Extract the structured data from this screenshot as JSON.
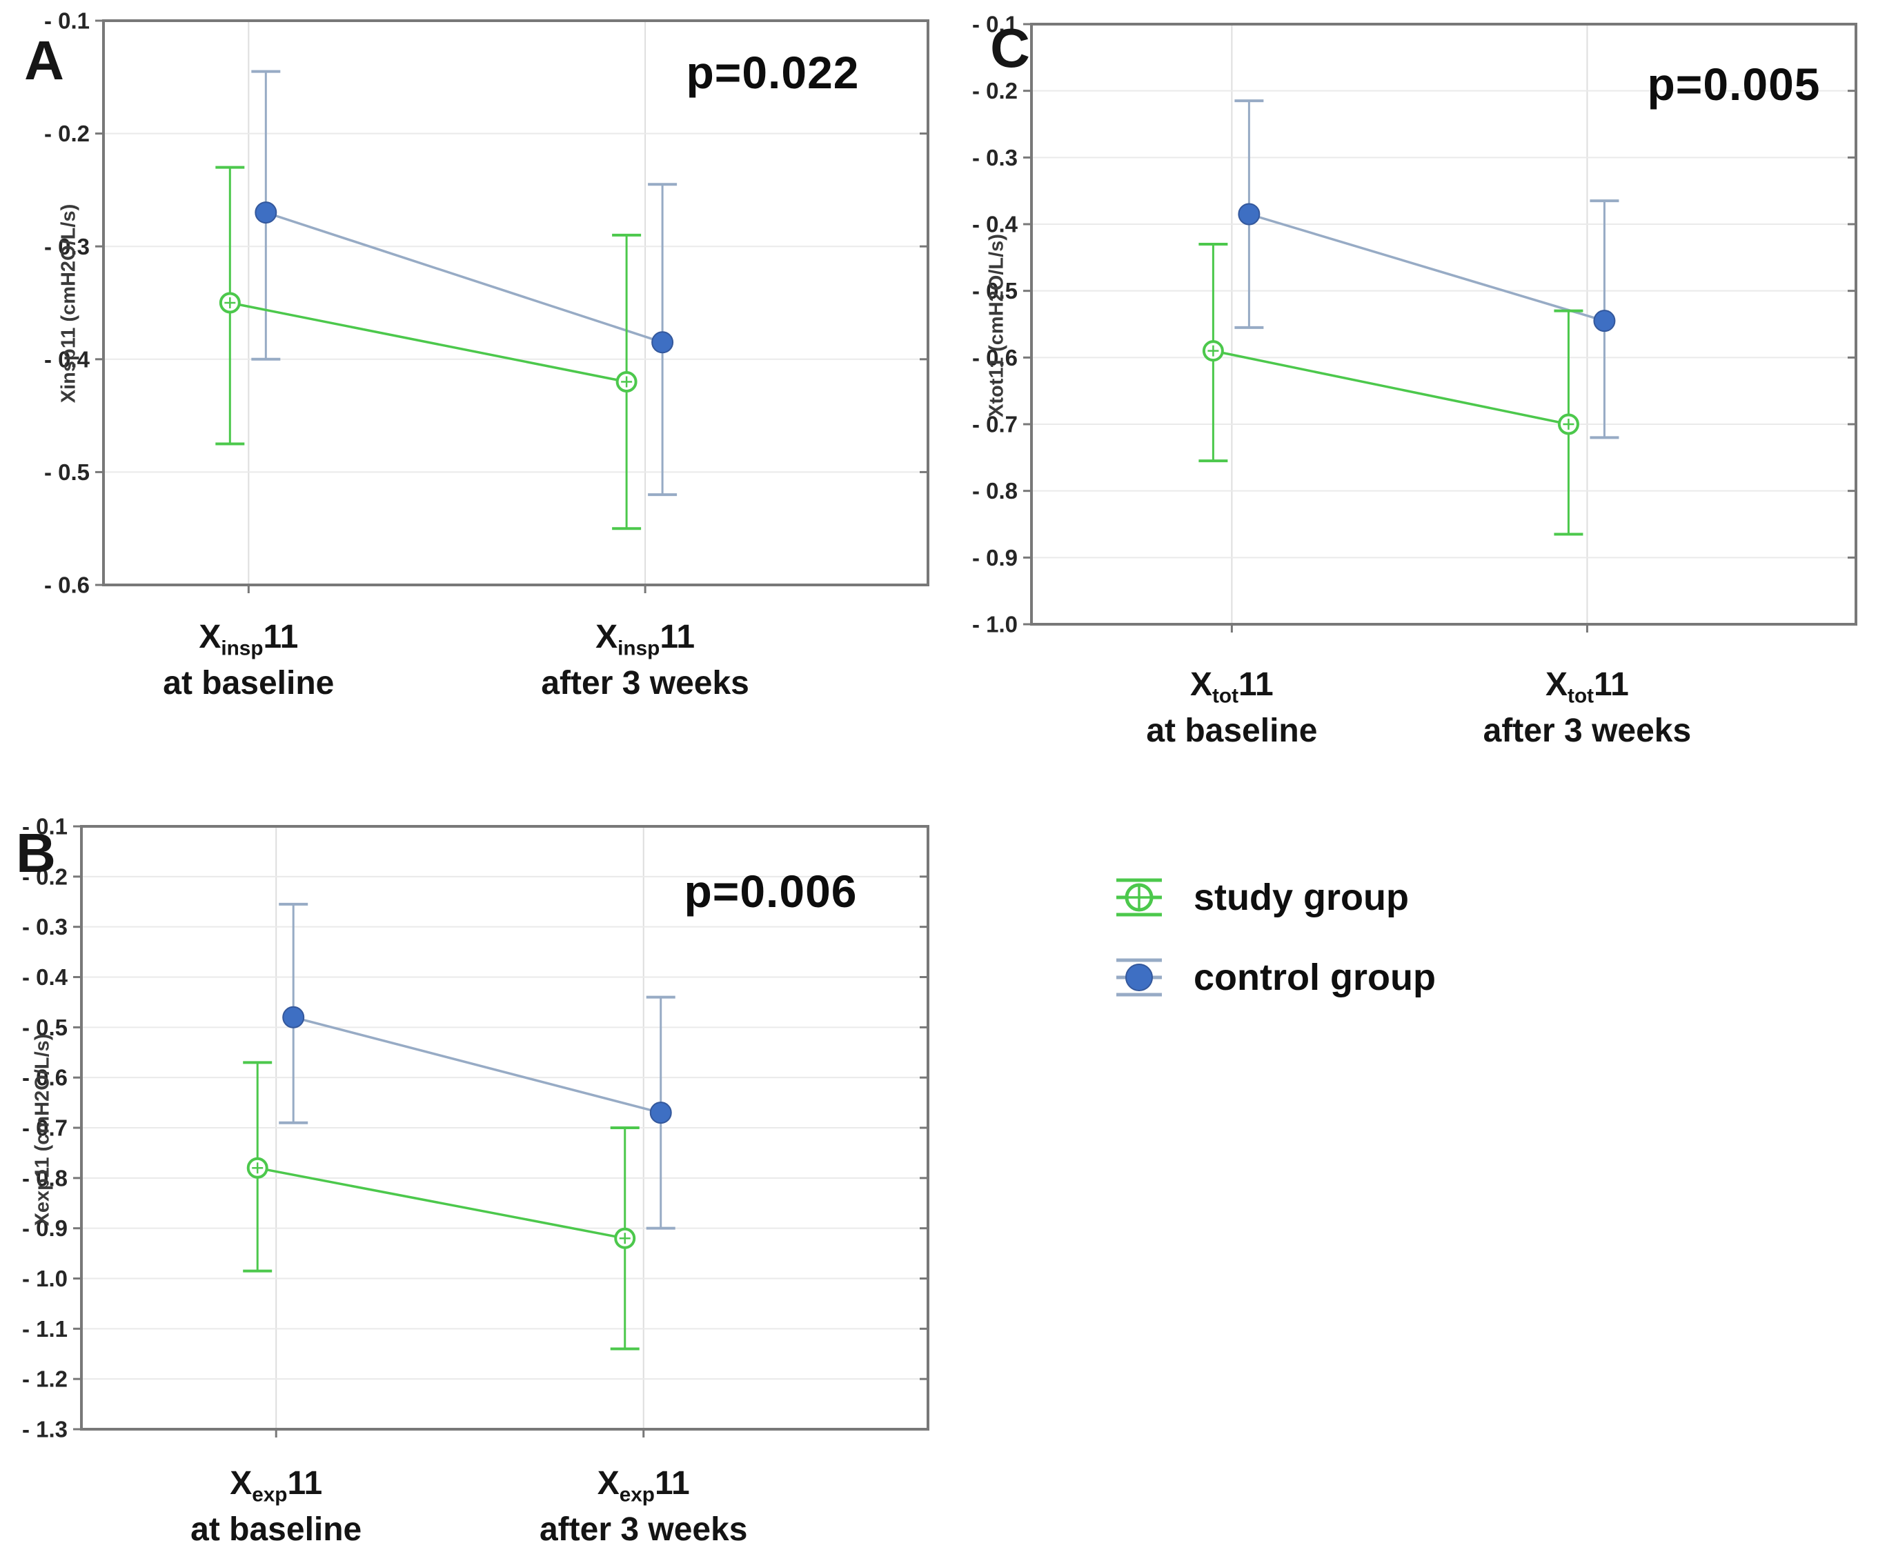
{
  "figure": {
    "background": "#ffffff"
  },
  "colors": {
    "study": "#4cc84c",
    "study_fill": "#ffffff",
    "control": "#3e6fc3",
    "control_dark": "#34589c",
    "control_line": "#97abc5",
    "grid": "#eaeaea",
    "grid_vertical": "#dedede",
    "axis": "#787878",
    "tick_text": "#262626",
    "text": "#111111"
  },
  "legend": {
    "items": [
      {
        "label": "study group",
        "series": "study"
      },
      {
        "label": "control group",
        "series": "control"
      }
    ]
  },
  "chart_data": [
    {
      "type": "line",
      "panel_label": "A",
      "p_label": "p=0.022",
      "ylabel": "Xinsp11 (cmH2O/L/s)",
      "ylim": [
        -0.6,
        -0.1
      ],
      "grid": true,
      "ytick_values": [
        -0.1,
        -0.2,
        -0.3,
        -0.4,
        -0.5,
        -0.6
      ],
      "ytick_labels": [
        "- 0.1",
        "- 0.2",
        "- 0.3",
        "- 0.4",
        "- 0.5",
        "- 0.6"
      ],
      "categories": [
        {
          "line1_main": "X",
          "line1_sub": "insp",
          "line1_suffix": "11",
          "line2": "at baseline"
        },
        {
          "line1_main": "X",
          "line1_sub": "insp",
          "line1_suffix": "11",
          "line2": "after 3 weeks"
        }
      ],
      "series": [
        {
          "name": "study group",
          "key": "study",
          "values": [
            -0.35,
            -0.42
          ],
          "err_high": [
            -0.23,
            -0.29
          ],
          "err_low": [
            -0.475,
            -0.55
          ]
        },
        {
          "name": "control group",
          "key": "control",
          "values": [
            -0.27,
            -0.385
          ],
          "err_high": [
            -0.145,
            -0.245
          ],
          "err_low": [
            -0.4,
            -0.52
          ]
        }
      ]
    },
    {
      "type": "line",
      "panel_label": "B",
      "p_label": "p=0.006",
      "ylabel": "Xexp11 (cmH2O/L/s)",
      "ylim": [
        -1.3,
        -0.1
      ],
      "grid": true,
      "ytick_values": [
        -0.1,
        -0.2,
        -0.3,
        -0.4,
        -0.5,
        -0.6,
        -0.7,
        -0.8,
        -0.9,
        -1.0,
        -1.1,
        -1.2,
        -1.3
      ],
      "ytick_labels": [
        "- 0.1",
        "- 0.2",
        "- 0.3",
        "- 0.4",
        "- 0.5",
        "- 0.6",
        "- 0.7",
        "- 0.8",
        "- 0.9",
        "- 1.0",
        "- 1.1",
        "- 1.2",
        "- 1.3"
      ],
      "categories": [
        {
          "line1_main": "X",
          "line1_sub": "exp",
          "line1_suffix": "11",
          "line2": "at baseline"
        },
        {
          "line1_main": "X",
          "line1_sub": "exp",
          "line1_suffix": "11",
          "line2": "after 3 weeks"
        }
      ],
      "series": [
        {
          "name": "study group",
          "key": "study",
          "values": [
            -0.78,
            -0.92
          ],
          "err_high": [
            -0.57,
            -0.7
          ],
          "err_low": [
            -0.985,
            -1.14
          ]
        },
        {
          "name": "control group",
          "key": "control",
          "values": [
            -0.48,
            -0.67
          ],
          "err_high": [
            -0.255,
            -0.44
          ],
          "err_low": [
            -0.69,
            -0.9
          ]
        }
      ]
    },
    {
      "type": "line",
      "panel_label": "C",
      "p_label": "p=0.005",
      "ylabel": "Xtot11 (cmH2O/L/s)",
      "ylim": [
        -1.0,
        -0.1
      ],
      "grid": true,
      "ytick_values": [
        -0.1,
        -0.2,
        -0.3,
        -0.4,
        -0.5,
        -0.6,
        -0.7,
        -0.8,
        -0.9,
        -1.0
      ],
      "ytick_labels": [
        "- 0.1",
        "- 0.2",
        "- 0.3",
        "- 0.4",
        "- 0.5",
        "- 0.6",
        "- 0.7",
        "- 0.8",
        "- 0.9",
        "- 1.0"
      ],
      "categories": [
        {
          "line1_main": "X",
          "line1_sub": "tot",
          "line1_suffix": "11",
          "line2": "at baseline"
        },
        {
          "line1_main": "X",
          "line1_sub": "tot",
          "line1_suffix": "11",
          "line2": "after 3 weeks"
        }
      ],
      "series": [
        {
          "name": "study group",
          "key": "study",
          "values": [
            -0.59,
            -0.7
          ],
          "err_high": [
            -0.43,
            -0.53
          ],
          "err_low": [
            -0.755,
            -0.865
          ]
        },
        {
          "name": "control group",
          "key": "control",
          "values": [
            -0.385,
            -0.545
          ],
          "err_high": [
            -0.215,
            -0.365
          ],
          "err_low": [
            -0.555,
            -0.72
          ]
        }
      ]
    }
  ]
}
